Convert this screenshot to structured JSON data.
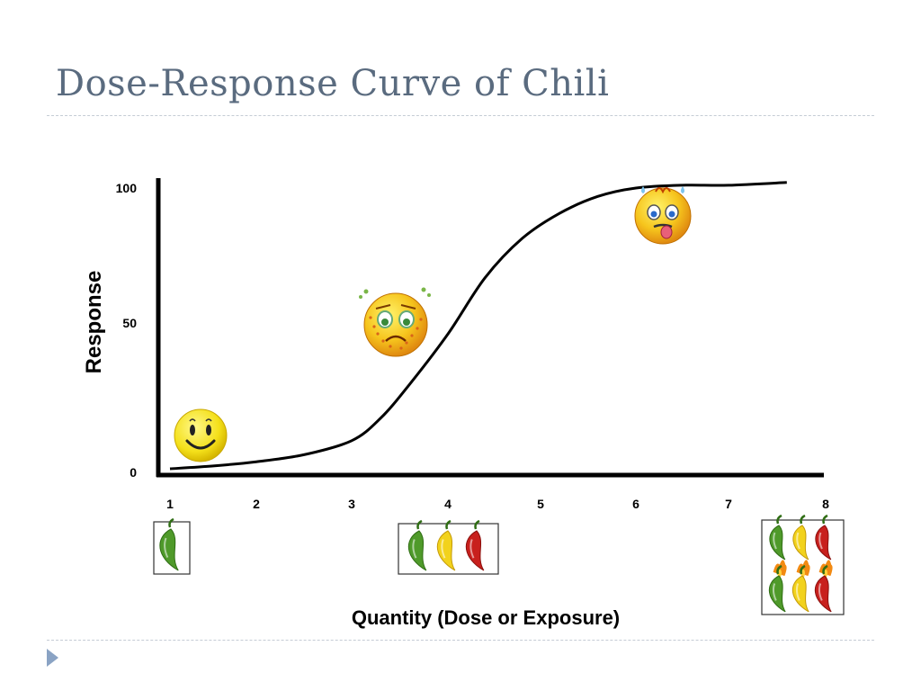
{
  "slide": {
    "title": "Dose-Response Curve of Chili"
  },
  "chart_data": {
    "type": "line",
    "title": "Dose-Response Curve of Chili",
    "xlabel": "Quantity (Dose or Exposure)",
    "ylabel": "Response",
    "xlim": [
      1,
      8
    ],
    "ylim": [
      0,
      100
    ],
    "x_ticks": [
      "1",
      "2",
      "3",
      "4",
      "5",
      "6",
      "7",
      "8"
    ],
    "y_ticks": [
      "0",
      "50",
      "100"
    ],
    "grid": false,
    "series": [
      {
        "x": [
          1,
          1.5,
          2,
          2.5,
          3,
          3.3,
          3.6,
          4,
          4.4,
          4.8,
          5.2,
          5.6,
          6,
          6.5,
          7,
          7.6
        ],
        "y": [
          0,
          1,
          2.5,
          5,
          10,
          18,
          30,
          48,
          68,
          82,
          91,
          97,
          100,
          101,
          101,
          102
        ]
      }
    ],
    "color": "#000000",
    "annotations": [
      {
        "kind": "emoji",
        "icon": "happy-face-icon",
        "x": 1.3,
        "y": 12
      },
      {
        "kind": "emoji",
        "icon": "sick-face-icon",
        "x": 3.5,
        "y": 52
      },
      {
        "kind": "emoji",
        "icon": "burning-face-icon",
        "x": 6.3,
        "y": 87
      }
    ],
    "dose_panels": [
      {
        "x": 1,
        "icons": [
          "green-chili-icon"
        ]
      },
      {
        "x": 4.05,
        "icons": [
          "green-chili-icon",
          "yellow-chili-icon",
          "red-chili-icon"
        ]
      },
      {
        "x": 7.9,
        "icons": [
          "green-chili-icon",
          "yellow-chili-icon",
          "red-chili-icon",
          "flaming-green-chili-icon",
          "flaming-yellow-chili-icon",
          "flaming-red-chili-icon"
        ]
      }
    ],
    "colors": {
      "green_chili": "#4f9a2a",
      "yellow_chili": "#f2d21c",
      "red_chili": "#c8201d",
      "emoji_face": "#f6b21c"
    }
  }
}
